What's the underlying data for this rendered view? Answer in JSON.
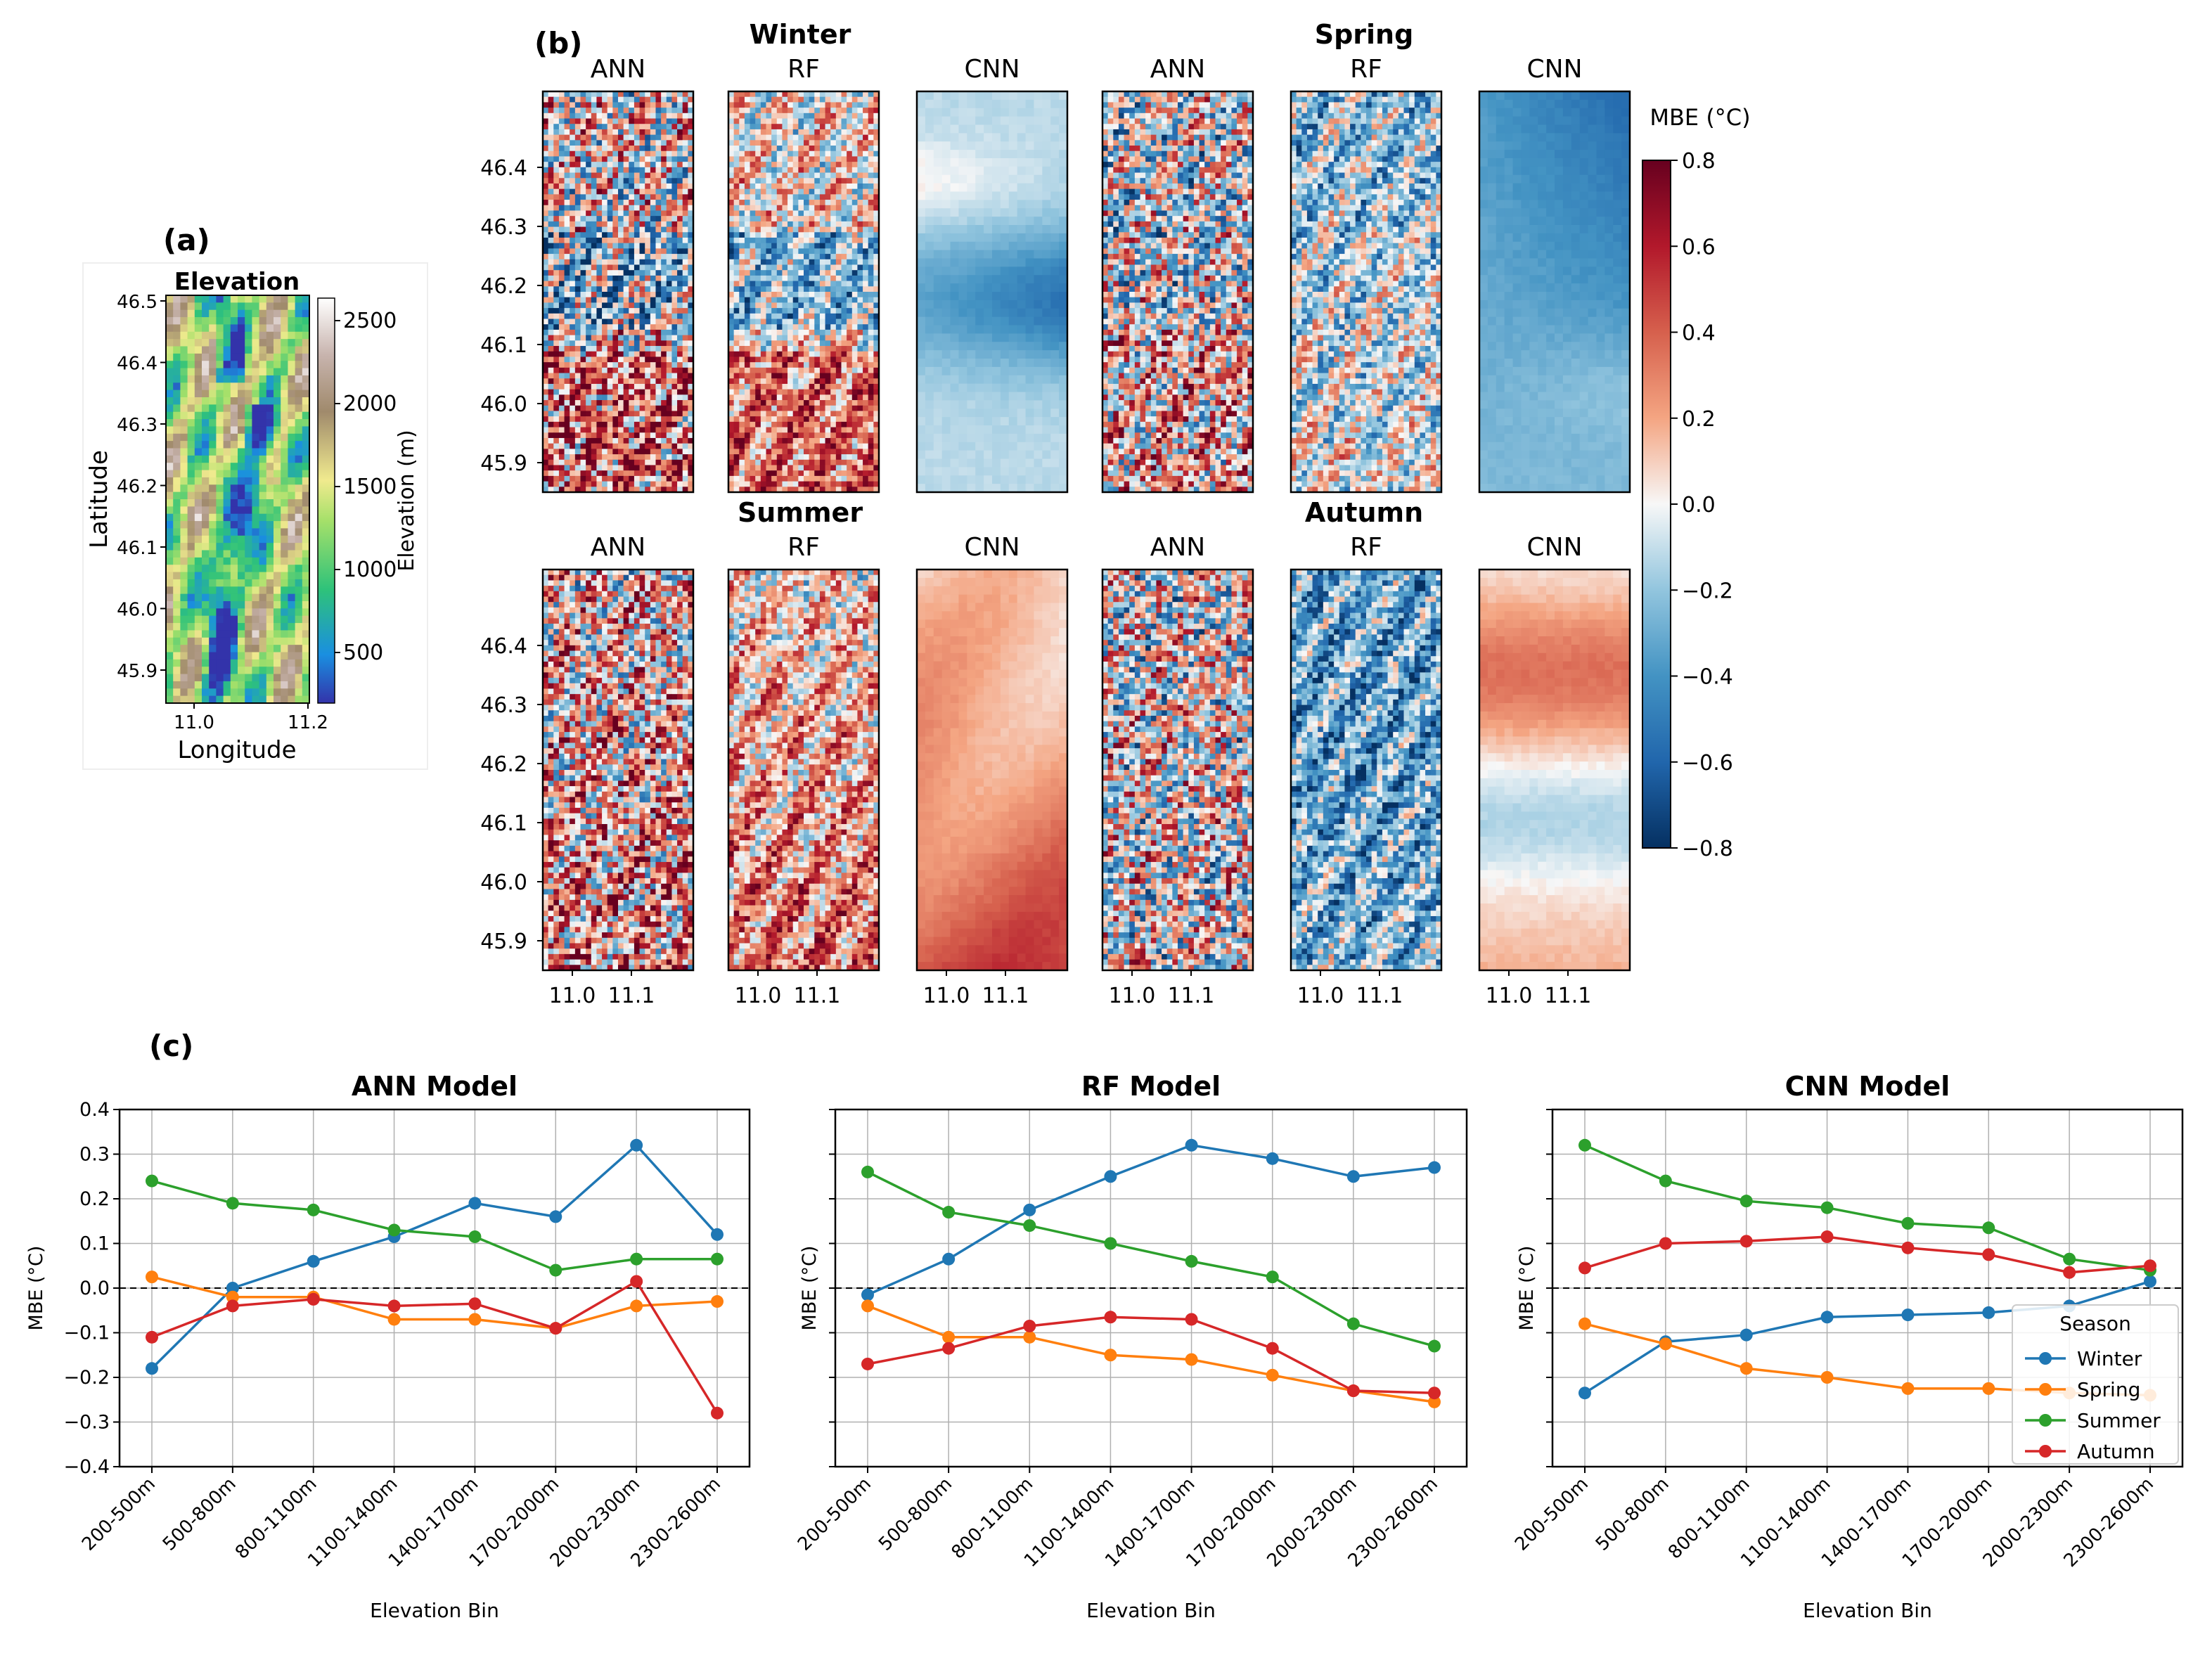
{
  "panel_labels": {
    "a": "(a)",
    "b": "(b)",
    "c": "(c)"
  },
  "elevation_map": {
    "title": "Elevation",
    "xlabel": "Longitude",
    "ylabel": "Latitude",
    "xticks": [
      "11.0",
      "11.2"
    ],
    "yticks": [
      "46.5",
      "46.4",
      "46.3",
      "46.2",
      "46.1",
      "46.0",
      "45.9"
    ],
    "colorbar_label": "Elevation (m)",
    "colorbar_ticks": [
      "2500",
      "2000",
      "1500",
      "1000",
      "500"
    ]
  },
  "mbe_maps": {
    "seasons": [
      {
        "name": "Winter",
        "models": [
          "ANN",
          "RF",
          "CNN"
        ]
      },
      {
        "name": "Spring",
        "models": [
          "ANN",
          "RF",
          "CNN"
        ]
      },
      {
        "name": "Summer",
        "models": [
          "ANN",
          "RF",
          "CNN"
        ]
      },
      {
        "name": "Autumn",
        "models": [
          "ANN",
          "RF",
          "CNN"
        ]
      }
    ],
    "yticks": [
      "46.4",
      "46.3",
      "46.2",
      "46.1",
      "46.0",
      "45.9"
    ],
    "xticks": [
      "11.0",
      "11.1"
    ],
    "colorbar_label": "MBE (°C)",
    "colorbar_ticks": [
      "0.8",
      "0.6",
      "0.4",
      "0.2",
      "0.0",
      "−0.2",
      "−0.4",
      "−0.6",
      "−0.8"
    ],
    "colors": {
      "neg": "#053061",
      "mid": "#f7f7f7",
      "pos": "#67001f"
    }
  },
  "chart_data": [
    {
      "type": "line",
      "title": "ANN Model",
      "xlabel": "Elevation Bin",
      "ylabel": "MBE (°C)",
      "ylim": [
        -0.4,
        0.4
      ],
      "yticks": [
        "0.4",
        "0.3",
        "0.2",
        "0.1",
        "0.0",
        "−0.1",
        "−0.2",
        "−0.3",
        "−0.4"
      ],
      "categories": [
        "200-500m",
        "500-800m",
        "800-1100m",
        "1100-1400m",
        "1400-1700m",
        "1700-2000m",
        "2000-2300m",
        "2300-2600m"
      ],
      "series": [
        {
          "name": "Winter",
          "values": [
            -0.18,
            0.0,
            0.06,
            0.115,
            0.19,
            0.16,
            0.32,
            0.12
          ]
        },
        {
          "name": "Spring",
          "values": [
            0.025,
            -0.02,
            -0.02,
            -0.07,
            -0.07,
            -0.09,
            -0.04,
            -0.03
          ]
        },
        {
          "name": "Summer",
          "values": [
            0.24,
            0.19,
            0.175,
            0.13,
            0.115,
            0.04,
            0.065,
            0.065
          ]
        },
        {
          "name": "Autumn",
          "values": [
            -0.11,
            -0.04,
            -0.025,
            -0.04,
            -0.035,
            -0.09,
            0.015,
            -0.28
          ]
        }
      ]
    },
    {
      "type": "line",
      "title": "RF Model",
      "xlabel": "Elevation Bin",
      "ylabel": "MBE (°C)",
      "ylim": [
        -0.4,
        0.4
      ],
      "categories": [
        "200-500m",
        "500-800m",
        "800-1100m",
        "1100-1400m",
        "1400-1700m",
        "1700-2000m",
        "2000-2300m",
        "2300-2600m"
      ],
      "series": [
        {
          "name": "Winter",
          "values": [
            -0.015,
            0.065,
            0.175,
            0.25,
            0.32,
            0.29,
            0.25,
            0.27
          ]
        },
        {
          "name": "Spring",
          "values": [
            -0.04,
            -0.11,
            -0.11,
            -0.15,
            -0.16,
            -0.195,
            -0.23,
            -0.255
          ]
        },
        {
          "name": "Summer",
          "values": [
            0.26,
            0.17,
            0.14,
            0.1,
            0.06,
            0.025,
            -0.08,
            -0.13
          ]
        },
        {
          "name": "Autumn",
          "values": [
            -0.17,
            -0.135,
            -0.085,
            -0.065,
            -0.07,
            -0.135,
            -0.23,
            -0.235
          ]
        }
      ]
    },
    {
      "type": "line",
      "title": "CNN Model",
      "xlabel": "Elevation Bin",
      "ylabel": "MBE (°C)",
      "ylim": [
        -0.4,
        0.4
      ],
      "categories": [
        "200-500m",
        "500-800m",
        "800-1100m",
        "1100-1400m",
        "1400-1700m",
        "1700-2000m",
        "2000-2300m",
        "2300-2600m"
      ],
      "legend": {
        "title": "Season",
        "location": "lower-right"
      },
      "series": [
        {
          "name": "Winter",
          "values": [
            -0.235,
            -0.12,
            -0.105,
            -0.065,
            -0.06,
            -0.055,
            -0.04,
            0.015
          ]
        },
        {
          "name": "Spring",
          "values": [
            -0.08,
            -0.125,
            -0.18,
            -0.2,
            -0.225,
            -0.225,
            -0.235,
            -0.24
          ]
        },
        {
          "name": "Summer",
          "values": [
            0.32,
            0.24,
            0.195,
            0.18,
            0.145,
            0.135,
            0.065,
            0.04
          ]
        },
        {
          "name": "Autumn",
          "values": [
            0.045,
            0.1,
            0.105,
            0.115,
            0.09,
            0.075,
            0.035,
            0.05
          ]
        }
      ]
    }
  ],
  "series_colors": {
    "Winter": "#1f77b4",
    "Spring": "#ff7f0e",
    "Summer": "#2ca02c",
    "Autumn": "#d62728"
  }
}
